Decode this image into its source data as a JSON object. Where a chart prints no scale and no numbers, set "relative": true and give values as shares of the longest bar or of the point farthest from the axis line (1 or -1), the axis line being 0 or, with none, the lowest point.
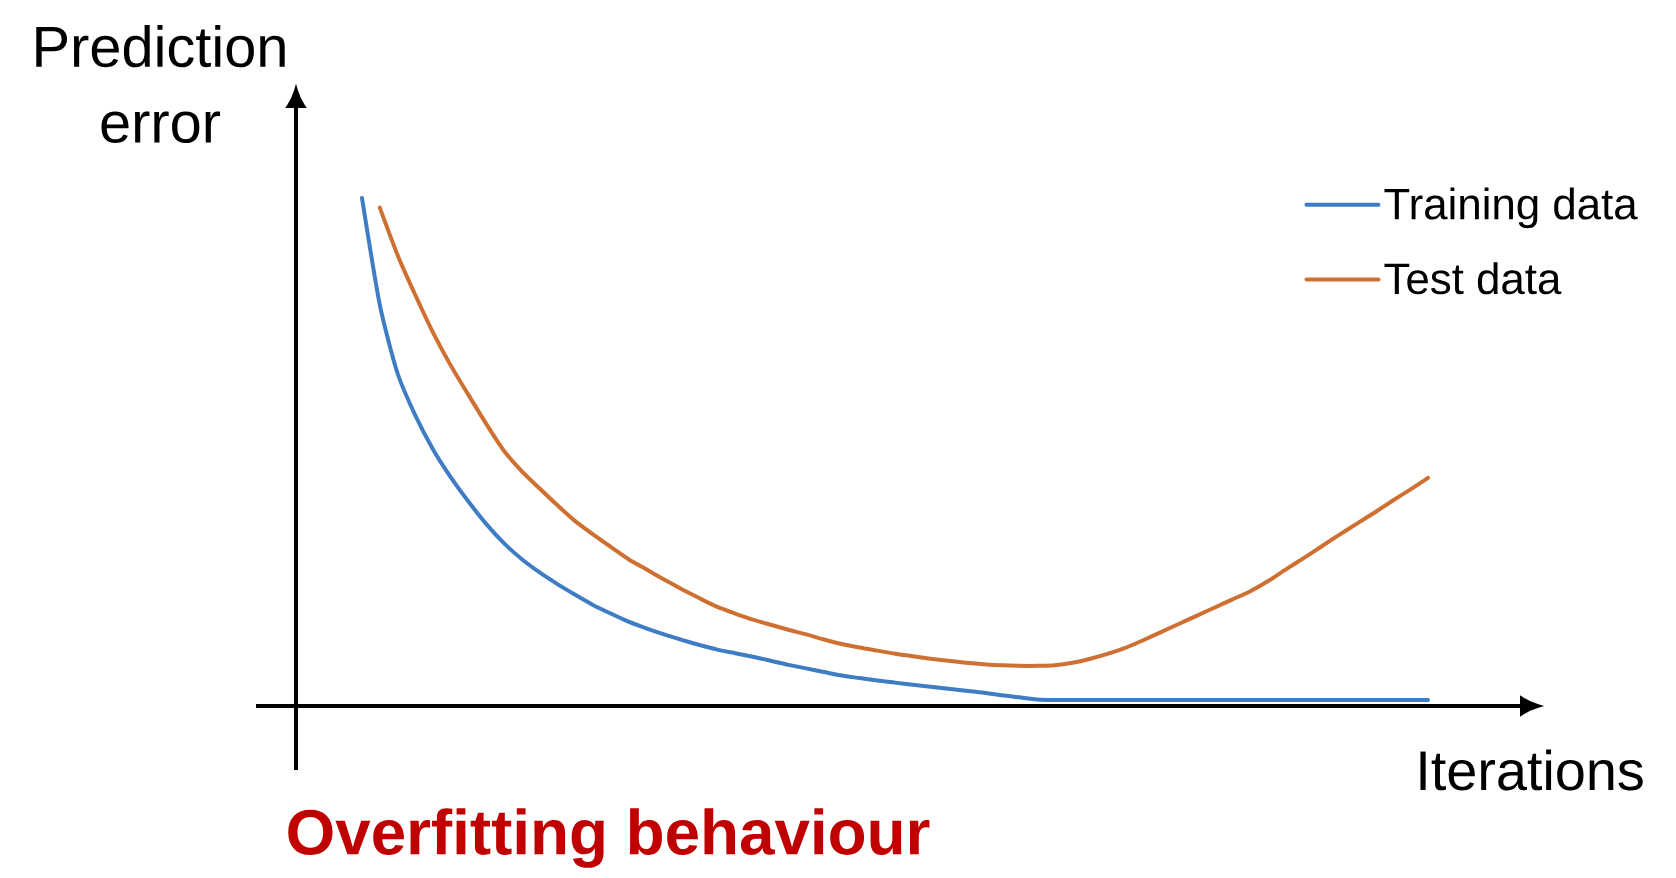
{
  "chart_data": {
    "type": "line",
    "relative": true,
    "title": "Overfitting behaviour",
    "xlabel": "Iterations",
    "ylabel": "Prediction error",
    "legend": "top right",
    "categories": [
      null,
      null,
      null,
      null,
      null,
      null,
      null,
      null,
      null,
      null,
      null,
      null,
      null,
      null,
      null,
      null,
      null,
      null,
      null,
      null,
      null,
      null,
      null,
      null,
      null,
      null,
      null,
      null,
      null,
      null,
      null,
      null,
      null,
      null,
      null,
      null,
      null,
      null,
      null,
      null,
      null,
      null,
      null,
      null,
      null,
      null,
      null,
      null,
      null,
      null,
      null,
      null,
      null,
      null,
      null,
      null,
      null,
      null,
      null,
      null,
      null
    ],
    "series": [
      {
        "name": "Training data",
        "color": "#3e7cc3",
        "values": [
          1,
          0.79,
          0.655,
          0.572,
          0.505,
          0.45,
          0.402,
          0.358,
          0.32,
          0.289,
          0.263,
          0.24,
          0.219,
          0.199,
          0.182,
          0.166,
          0.153,
          0.141,
          0.13,
          0.12,
          0.111,
          0.104,
          0.097,
          0.089,
          0.081,
          0.074,
          0.067,
          0.06,
          0.055,
          0.05,
          0.046,
          0.042,
          0.038,
          0.034,
          0.03,
          0.026,
          0.021,
          0.017,
          0.013,
          0.012,
          0.012,
          0.012,
          0.012,
          0.012,
          0.012,
          0.012,
          0.012,
          0.012,
          0.012,
          0.012,
          0.012,
          0.012,
          0.012,
          0.012,
          0.012,
          0.012,
          0.012,
          0.012,
          0.012,
          0.012,
          0.012
        ]
      },
      {
        "name": "Test data",
        "color": "#cf7033",
        "values": [
          null,
          0.981,
          0.888,
          0.809,
          0.735,
          0.67,
          0.612,
          0.555,
          0.502,
          0.462,
          0.428,
          0.395,
          0.364,
          0.338,
          0.313,
          0.289,
          0.269,
          0.249,
          0.23,
          0.212,
          0.195,
          0.182,
          0.17,
          0.16,
          0.15,
          0.141,
          0.131,
          0.122,
          0.115,
          0.109,
          0.103,
          0.098,
          0.093,
          0.089,
          0.085,
          0.082,
          0.08,
          0.079,
          0.079,
          0.08,
          0.085,
          0.093,
          0.103,
          0.115,
          0.13,
          0.146,
          0.162,
          0.178,
          0.194,
          0.21,
          0.226,
          0.246,
          0.269,
          0.291,
          0.314,
          0.337,
          0.359,
          0.381,
          0.404,
          0.426,
          0.449
        ]
      }
    ]
  }
}
